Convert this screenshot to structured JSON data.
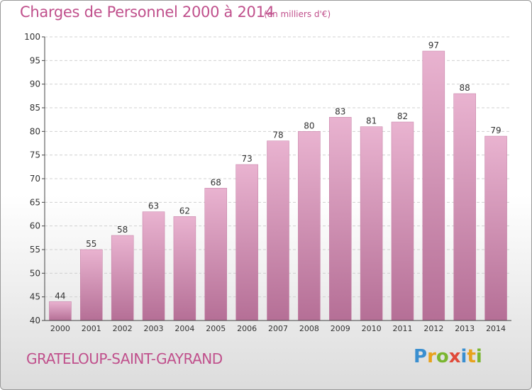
{
  "chart_data": {
    "type": "bar",
    "title": "Charges de Personnel 2000 à 2014",
    "subtitle": "(en milliers d'€)",
    "categories": [
      "2000",
      "2001",
      "2002",
      "2003",
      "2004",
      "2005",
      "2006",
      "2007",
      "2008",
      "2009",
      "2010",
      "2011",
      "2012",
      "2013",
      "2014"
    ],
    "values": [
      44,
      55,
      58,
      63,
      62,
      68,
      73,
      78,
      80,
      83,
      81,
      82,
      97,
      88,
      79
    ],
    "ylim": [
      40,
      100
    ],
    "yticks": [
      40,
      45,
      50,
      55,
      60,
      65,
      70,
      75,
      80,
      85,
      90,
      95,
      100
    ],
    "grid": true,
    "bar_color": "#d08aae"
  },
  "commune": "GRATELOUP-SAINT-GAYRAND",
  "logo": {
    "letters": [
      "P",
      "r",
      "o",
      "x",
      "i",
      "t",
      "i"
    ],
    "colors": [
      "#3a8fd0",
      "#e8a21c",
      "#7ab630",
      "#e04a3a",
      "#3a8fd0",
      "#e8a21c",
      "#7ab630"
    ]
  }
}
